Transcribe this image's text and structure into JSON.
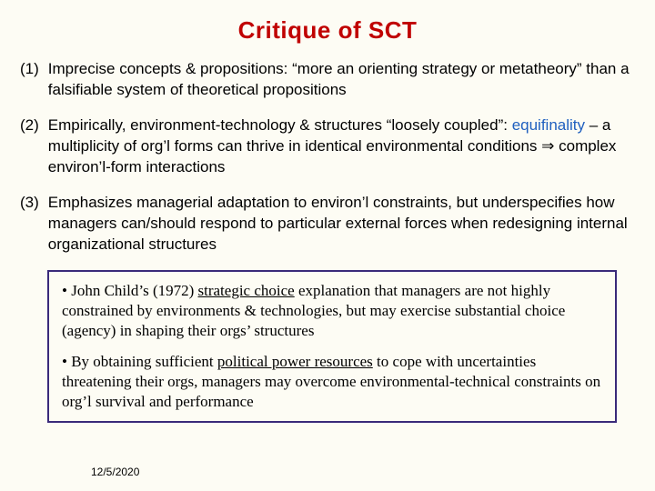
{
  "title": "Critique of SCT",
  "colors": {
    "background": "#fdfcf4",
    "title": "#c00000",
    "text": "#000000",
    "equifinality": "#1f5fbf",
    "box_border": "#3a2a7a"
  },
  "typography": {
    "title_fontsize": 26,
    "title_weight": 900,
    "body_fontsize": 17,
    "box_font_family": "Times New Roman",
    "body_font_family": "Arial"
  },
  "items": [
    {
      "num": "(1)",
      "pre": "Imprecise concepts & propositions: “more an orienting strategy or metatheory” than a falsifiable system of theoretical propositions"
    },
    {
      "num": "(2)",
      "pre": "Empirically, environment-technology & structures “loosely coupled”: ",
      "equif": "equifinality",
      "mid": " – a multiplicity of org’l forms can thrive in identical environmental conditions ",
      "arrow": "⇒",
      "post": " complex environ’l-form interactions"
    },
    {
      "num": "(3)",
      "pre": "Emphasizes managerial adaptation to environ’l constraints, but underspecifies how managers can/should respond to particular external forces when redesigning internal organizational structures"
    }
  ],
  "box": {
    "p1_a": "• John Child’s (1972) ",
    "p1_u": "strategic choice",
    "p1_b": " explanation that managers are not highly constrained by environments & technologies, but may exercise substantial choice (agency) in shaping their orgs’ structures",
    "p2_a": "• By obtaining sufficient ",
    "p2_u": "political power resources",
    "p2_b": " to cope with uncertainties threatening their orgs, managers may overcome environmental-technical constraints on org’l survival and performance"
  },
  "date": "12/5/2020"
}
